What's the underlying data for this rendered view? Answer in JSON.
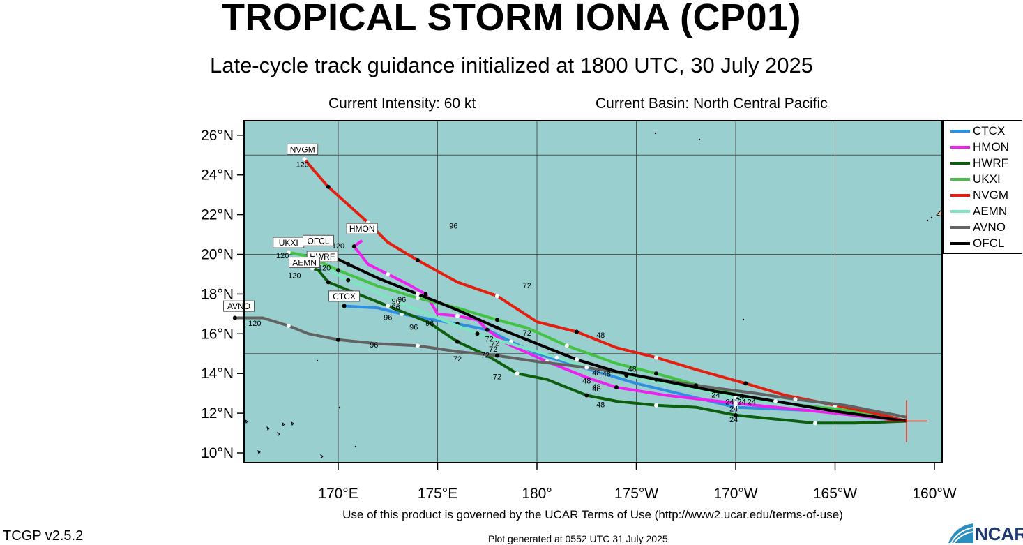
{
  "title": "TROPICAL STORM IONA (CP01)",
  "subtitle": "Late-cycle track guidance initialized at 1800 UTC, 30 July 2025",
  "intensity": "Current Intensity: 60 kt",
  "basin": "Current Basin: North Central Pacific",
  "terms": "Use of this product is governed by the UCAR Terms of Use (http://www2.ucar.edu/terms-of-use)",
  "version": "TCGP v2.5.2",
  "generated": "Plot generated at 0552 UTC   31 July 2025",
  "logo": "NCAR",
  "colors": {
    "ocean": "#99cfce",
    "land": "#e2c7a6"
  },
  "lat_labels": [
    "10°N",
    "12°N",
    "14°N",
    "16°N",
    "18°N",
    "20°N",
    "22°N",
    "24°N",
    "26°N"
  ],
  "lon_labels": [
    "170°E",
    "175°E",
    "180°",
    "175°W",
    "170°W",
    "165°W",
    "160°W"
  ],
  "models": [
    {
      "name": "CTCX",
      "color": "#2f8fe0",
      "label": "CTCX",
      "end_hour": "120",
      "track": [
        [
          -161.4,
          11.6
        ],
        [
          -165.3,
          12.1
        ],
        [
          -170,
          12.3
        ],
        [
          -175,
          13.5
        ],
        [
          -178,
          14.4
        ],
        [
          -180,
          15
        ],
        [
          -181.3,
          15.6
        ],
        [
          -182.5,
          16.2
        ],
        [
          -184,
          16.5
        ],
        [
          -185.2,
          16.7
        ],
        [
          -186.8,
          17
        ],
        [
          -188,
          17.3
        ],
        [
          -189.7,
          17.4
        ]
      ]
    },
    {
      "name": "HMON",
      "color": "#ee22ee",
      "label": "HMON",
      "end_hour": "120",
      "track": [
        [
          -161.4,
          11.6
        ],
        [
          -165,
          12
        ],
        [
          -170,
          12.5
        ],
        [
          -173.5,
          12.9
        ],
        [
          -176,
          13.3
        ],
        [
          -177.5,
          13.8
        ],
        [
          -179.5,
          14.6
        ],
        [
          -181.5,
          15.5
        ],
        [
          -182.5,
          16.2
        ],
        [
          -183,
          16.7
        ],
        [
          -184,
          16.9
        ],
        [
          -185,
          17
        ],
        [
          -185.6,
          18
        ],
        [
          -186.5,
          18.5
        ],
        [
          -187.5,
          19
        ],
        [
          -188.5,
          19.5
        ],
        [
          -189.2,
          20.4
        ],
        [
          -188.8,
          20.7
        ]
      ]
    },
    {
      "name": "HWRF",
      "color": "#0f5e0f",
      "label": "HWRF",
      "end_hour": "120",
      "track": [
        [
          -161.4,
          11.6
        ],
        [
          -164,
          11.5
        ],
        [
          -166,
          11.5
        ],
        [
          -168,
          11.7
        ],
        [
          -170,
          11.9
        ],
        [
          -172,
          12.3
        ],
        [
          -174,
          12.4
        ],
        [
          -176,
          12.6
        ],
        [
          -177.5,
          12.9
        ],
        [
          -179.5,
          13.7
        ],
        [
          -181,
          14
        ],
        [
          -182.5,
          14.9
        ],
        [
          -184,
          15.6
        ],
        [
          -185.5,
          16.6
        ],
        [
          -187.5,
          17.4
        ],
        [
          -189.5,
          18.2
        ],
        [
          -190.5,
          18.6
        ],
        [
          -191,
          19.2
        ],
        [
          -191.3,
          19.3
        ]
      ]
    },
    {
      "name": "UKXI",
      "color": "#44c244",
      "label": "UKXI",
      "end_hour": "120",
      "track": [
        [
          -161.4,
          11.6
        ],
        [
          -164,
          12.1
        ],
        [
          -168.5,
          12.6
        ],
        [
          -171.5,
          13.3
        ],
        [
          -174,
          14
        ],
        [
          -176,
          14.5
        ],
        [
          -178.5,
          15.4
        ],
        [
          -180.5,
          16.3
        ],
        [
          -182,
          16.7
        ],
        [
          -184,
          17.3
        ],
        [
          -186,
          17.8
        ],
        [
          -188,
          18.4
        ],
        [
          -190,
          19.2
        ],
        [
          -191.5,
          19.9
        ],
        [
          -192.5,
          20.1
        ]
      ]
    },
    {
      "name": "NVGM",
      "color": "#e41f10",
      "label": "NVGM",
      "end_hour": "120",
      "track": [
        [
          -161.4,
          11.6
        ],
        [
          -163,
          12
        ],
        [
          -165,
          12.4
        ],
        [
          -167.5,
          12.9
        ],
        [
          -169.5,
          13.5
        ],
        [
          -172,
          14.2
        ],
        [
          -174,
          14.8
        ],
        [
          -176,
          15.3
        ],
        [
          -178,
          16.1
        ],
        [
          -180,
          16.6
        ],
        [
          -182,
          17.9
        ],
        [
          -184,
          18.6
        ],
        [
          -186,
          19.7
        ],
        [
          -187.5,
          20.6
        ],
        [
          -188.5,
          21.6
        ],
        [
          -189.5,
          22.5
        ],
        [
          -190.5,
          23.4
        ],
        [
          -191.2,
          24.2
        ],
        [
          -191.7,
          24.8
        ]
      ]
    },
    {
      "name": "AEMN",
      "color": "#7ee5c3",
      "label": "AEMN",
      "end_hour": "120",
      "track": [
        [
          -161.4,
          11.6
        ],
        [
          -165,
          12.1
        ],
        [
          -170,
          12.8
        ],
        [
          -173,
          13.4
        ],
        [
          -175.5,
          13.9
        ],
        [
          -177.5,
          14.3
        ],
        [
          -179,
          14.8
        ],
        [
          -181,
          15.4
        ],
        [
          -183,
          16
        ],
        [
          -185,
          16.8
        ],
        [
          -187,
          17.6
        ],
        [
          -188.5,
          18.3
        ],
        [
          -189.5,
          18.7
        ],
        [
          -190.5,
          19.2
        ]
      ]
    },
    {
      "name": "AVNO",
      "color": "#626262",
      "label": "AVNO",
      "end_hour": "120",
      "track": [
        [
          -161.4,
          11.8
        ],
        [
          -164.5,
          12.4
        ],
        [
          -167,
          12.7
        ],
        [
          -169,
          13.0
        ],
        [
          -172,
          13.4
        ],
        [
          -175,
          13.9
        ],
        [
          -177.5,
          14.3
        ],
        [
          -180,
          14.6
        ],
        [
          -182,
          14.9
        ],
        [
          -184,
          15.1
        ],
        [
          -186,
          15.4
        ],
        [
          -188,
          15.5
        ],
        [
          -190,
          15.7
        ],
        [
          -191.5,
          16
        ],
        [
          -192.5,
          16.4
        ],
        [
          -193.8,
          16.8
        ],
        [
          -195.2,
          16.8
        ]
      ]
    },
    {
      "name": "OFCL",
      "color": "#000000",
      "label": "OFCL",
      "end_hour": "120",
      "track": [
        [
          -161.4,
          11.6
        ],
        [
          -165,
          12.1
        ],
        [
          -168,
          12.6
        ],
        [
          -171,
          13.1
        ],
        [
          -174,
          13.7
        ],
        [
          -176,
          14.1
        ],
        [
          -178,
          14.7
        ],
        [
          -180,
          15.5
        ],
        [
          -182,
          16.3
        ],
        [
          -184,
          17.2
        ],
        [
          -186,
          18
        ],
        [
          -188,
          18.8
        ],
        [
          -189.5,
          19.5
        ],
        [
          -190.5,
          20
        ]
      ]
    }
  ],
  "hour_labels": [
    {
      "text": "24",
      "lon": -169.8,
      "lat": 12.7
    },
    {
      "text": "24",
      "lon": -170.3,
      "lat": 12.45
    },
    {
      "text": "24",
      "lon": -169.7,
      "lat": 12.45
    },
    {
      "text": "24",
      "lon": -170.1,
      "lat": 12.1
    },
    {
      "text": "24",
      "lon": -170.1,
      "lat": 11.55
    },
    {
      "text": "24",
      "lon": -171,
      "lat": 12.8
    },
    {
      "text": "24",
      "lon": -169.2,
      "lat": 12.45
    },
    {
      "text": "48",
      "lon": -177,
      "lat": 13.9
    },
    {
      "text": "48",
      "lon": -176.5,
      "lat": 13.85
    },
    {
      "text": "48",
      "lon": -175.2,
      "lat": 14.1
    },
    {
      "text": "48",
      "lon": -177.5,
      "lat": 13.5
    },
    {
      "text": "48",
      "lon": -177,
      "lat": 13.2
    },
    {
      "text": "48",
      "lon": -177,
      "lat": 13.1
    },
    {
      "text": "48",
      "lon": -176.8,
      "lat": 12.3
    },
    {
      "text": "48",
      "lon": -176.8,
      "lat": 15.8
    },
    {
      "text": "72",
      "lon": -180.5,
      "lat": 15.9
    },
    {
      "text": "72",
      "lon": -182.4,
      "lat": 15.6
    },
    {
      "text": "72",
      "lon": -182.1,
      "lat": 15.4
    },
    {
      "text": "72",
      "lon": -182.2,
      "lat": 15.1
    },
    {
      "text": "72",
      "lon": -182.6,
      "lat": 14.8
    },
    {
      "text": "72",
      "lon": -184,
      "lat": 14.6
    },
    {
      "text": "72",
      "lon": -182,
      "lat": 13.7
    },
    {
      "text": "72",
      "lon": -180.5,
      "lat": 18.3
    },
    {
      "text": "96",
      "lon": -185.4,
      "lat": 16.4
    },
    {
      "text": "96",
      "lon": -186.2,
      "lat": 16.2
    },
    {
      "text": "96",
      "lon": -187.5,
      "lat": 16.7
    },
    {
      "text": "96",
      "lon": -186.8,
      "lat": 17.6
    },
    {
      "text": "96",
      "lon": -187.1,
      "lat": 17.5
    },
    {
      "text": "96",
      "lon": -188.2,
      "lat": 15.3
    },
    {
      "text": "96",
      "lon": -184.2,
      "lat": 21.3
    },
    {
      "text": "96",
      "lon": -187.1,
      "lat": 17.2
    },
    {
      "text": "120",
      "lon": -194.2,
      "lat": 16.4
    },
    {
      "text": "120",
      "lon": -190,
      "lat": 20.3
    },
    {
      "text": "120",
      "lon": -192.8,
      "lat": 19.8
    },
    {
      "text": "120",
      "lon": -190.5,
      "lat": 19.6
    },
    {
      "text": "120",
      "lon": -190.7,
      "lat": 19.2
    },
    {
      "text": "120",
      "lon": -192.2,
      "lat": 18.8
    },
    {
      "text": "120",
      "lon": -191.8,
      "lat": 24.4
    }
  ],
  "tag_positions": [
    {
      "model": "NVGM",
      "lon": -191.8,
      "lat": 25.1
    },
    {
      "model": "HMON",
      "lon": -188.8,
      "lat": 21.1
    },
    {
      "model": "UKXI",
      "lon": -192.5,
      "lat": 20.4
    },
    {
      "model": "OFCL",
      "lon": -191,
      "lat": 20.5
    },
    {
      "model": "HWRF",
      "lon": -190.8,
      "lat": 19.7
    },
    {
      "model": "AEMN",
      "lon": -191.7,
      "lat": 19.4
    },
    {
      "model": "CTCX",
      "lon": -189.7,
      "lat": 17.7
    },
    {
      "model": "AVNO",
      "lon": -195,
      "lat": 17.2
    }
  ],
  "storm_center": {
    "lon": -161.4,
    "lat": 11.6
  }
}
